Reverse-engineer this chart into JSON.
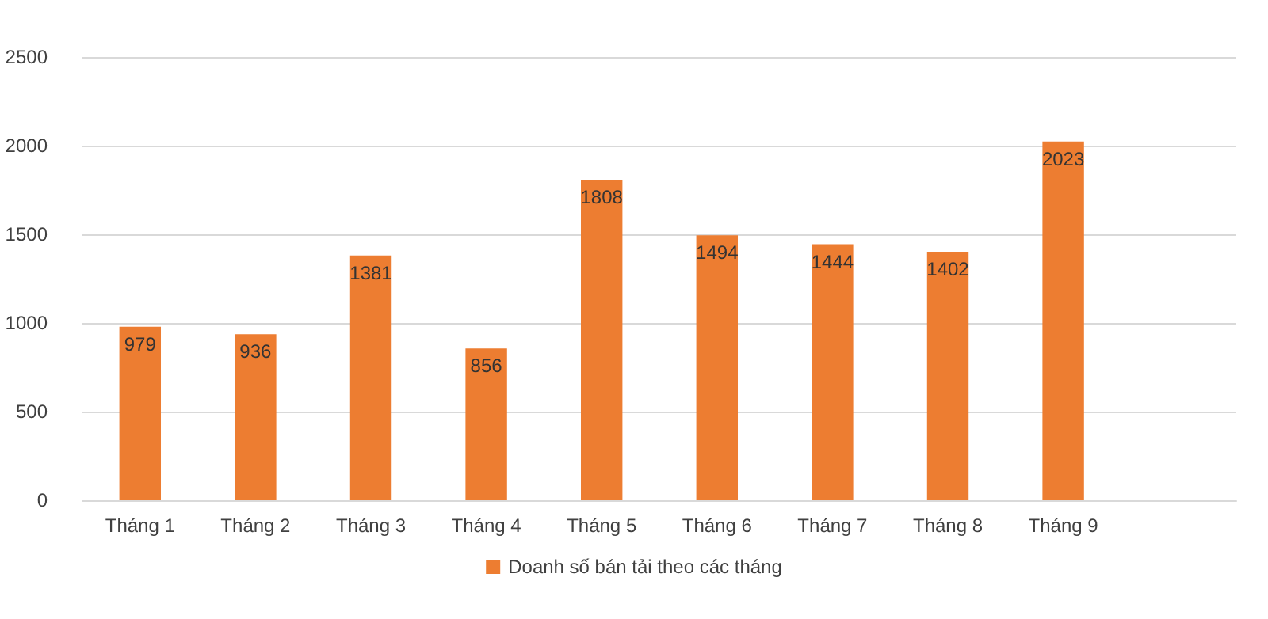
{
  "chart_data": {
    "type": "bar",
    "categories": [
      "Tháng 1",
      "Tháng 2",
      "Tháng 3",
      "Tháng 4",
      "Tháng 5",
      "Tháng 6",
      "Tháng 7",
      "Tháng 8",
      "Tháng 9",
      null
    ],
    "series": [
      {
        "name": "Doanh số bán tải theo các tháng",
        "color": "#ed7d31",
        "values": [
          979,
          936,
          1381,
          856,
          1808,
          1494,
          1444,
          1402,
          2023,
          null
        ]
      }
    ],
    "ylim": [
      0,
      2500
    ],
    "yticks": [
      0,
      500,
      1000,
      1500,
      2000,
      2500
    ],
    "grid": "y",
    "legend": "bottom",
    "data_labels": true
  }
}
